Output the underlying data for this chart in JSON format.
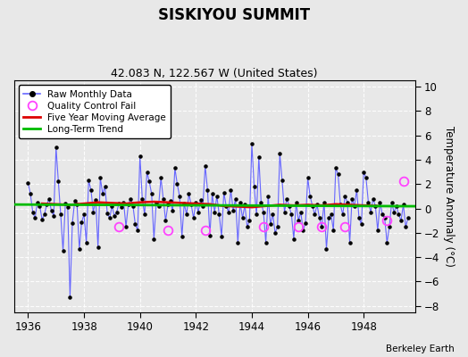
{
  "title": "SISKIYOU SUMMIT",
  "subtitle": "42.083 N, 122.567 W (United States)",
  "ylabel": "Temperature Anomaly (°C)",
  "credit": "Berkeley Earth",
  "xlim": [
    1935.5,
    1949.83
  ],
  "ylim": [
    -8.5,
    10.5
  ],
  "yticks": [
    -8,
    -6,
    -4,
    -2,
    0,
    2,
    4,
    6,
    8,
    10
  ],
  "xticks": [
    1936,
    1938,
    1940,
    1942,
    1944,
    1946,
    1948
  ],
  "bg_color": "#e8e8e8",
  "grid_color": "#c8c8c8",
  "raw_color": "#6666ff",
  "dot_color": "#000000",
  "ma_color": "#dd0000",
  "trend_color": "#00bb00",
  "qc_color": "#ff44ff",
  "raw_data_x": [
    1936.0,
    1936.083,
    1936.167,
    1936.25,
    1936.333,
    1936.417,
    1936.5,
    1936.583,
    1936.667,
    1936.75,
    1936.833,
    1936.917,
    1937.0,
    1937.083,
    1937.167,
    1937.25,
    1937.333,
    1937.417,
    1937.5,
    1937.583,
    1937.667,
    1937.75,
    1937.833,
    1937.917,
    1938.0,
    1938.083,
    1938.167,
    1938.25,
    1938.333,
    1938.417,
    1938.5,
    1938.583,
    1938.667,
    1938.75,
    1938.833,
    1938.917,
    1939.0,
    1939.083,
    1939.167,
    1939.25,
    1939.333,
    1939.417,
    1939.5,
    1939.583,
    1939.667,
    1939.75,
    1939.833,
    1939.917,
    1940.0,
    1940.083,
    1940.167,
    1940.25,
    1940.333,
    1940.417,
    1940.5,
    1940.583,
    1940.667,
    1940.75,
    1940.833,
    1940.917,
    1941.0,
    1941.083,
    1941.167,
    1941.25,
    1941.333,
    1941.417,
    1941.5,
    1941.583,
    1941.667,
    1941.75,
    1941.833,
    1941.917,
    1942.0,
    1942.083,
    1942.167,
    1942.25,
    1942.333,
    1942.417,
    1942.5,
    1942.583,
    1942.667,
    1942.75,
    1942.833,
    1942.917,
    1943.0,
    1943.083,
    1943.167,
    1943.25,
    1943.333,
    1943.417,
    1943.5,
    1943.583,
    1943.667,
    1943.75,
    1943.833,
    1943.917,
    1944.0,
    1944.083,
    1944.167,
    1944.25,
    1944.333,
    1944.417,
    1944.5,
    1944.583,
    1944.667,
    1944.75,
    1944.833,
    1944.917,
    1945.0,
    1945.083,
    1945.167,
    1945.25,
    1945.333,
    1945.417,
    1945.5,
    1945.583,
    1945.667,
    1945.75,
    1945.833,
    1945.917,
    1946.0,
    1946.083,
    1946.167,
    1946.25,
    1946.333,
    1946.417,
    1946.5,
    1946.583,
    1946.667,
    1946.75,
    1946.833,
    1946.917,
    1947.0,
    1947.083,
    1947.167,
    1947.25,
    1947.333,
    1947.417,
    1947.5,
    1947.583,
    1947.667,
    1947.75,
    1947.833,
    1947.917,
    1948.0,
    1948.083,
    1948.167,
    1948.25,
    1948.333,
    1948.417,
    1948.5,
    1948.583,
    1948.667,
    1948.75,
    1948.833,
    1948.917,
    1949.0,
    1949.083,
    1949.167,
    1949.25,
    1949.333,
    1949.417,
    1949.5,
    1949.583
  ],
  "raw_data_y": [
    2.1,
    1.2,
    -0.3,
    -0.8,
    0.5,
    0.2,
    -0.9,
    -0.5,
    0.3,
    0.8,
    -0.2,
    -0.6,
    5.0,
    2.2,
    -0.5,
    -3.5,
    0.4,
    0.1,
    -7.3,
    -1.2,
    0.6,
    0.3,
    -3.3,
    -1.1,
    -0.5,
    -2.8,
    2.3,
    1.5,
    -0.3,
    0.7,
    -3.2,
    2.5,
    1.2,
    1.8,
    -0.4,
    -0.8,
    0.2,
    -0.6,
    -0.3,
    0.4,
    0.1,
    0.5,
    -1.5,
    0.3,
    0.8,
    0.2,
    -1.3,
    -1.8,
    4.3,
    0.8,
    -0.5,
    3.0,
    2.2,
    1.2,
    -2.5,
    0.5,
    0.2,
    2.5,
    0.8,
    -1.0,
    0.3,
    0.6,
    -0.2,
    3.3,
    2.0,
    1.0,
    -2.3,
    0.4,
    -0.5,
    1.2,
    0.3,
    -0.8,
    0.5,
    -0.3,
    0.7,
    0.2,
    3.5,
    1.5,
    -2.2,
    1.2,
    -0.3,
    1.0,
    -0.5,
    -2.3,
    1.3,
    0.2,
    -0.3,
    1.5,
    -0.2,
    0.8,
    -2.8,
    0.5,
    -0.8,
    0.3,
    -1.5,
    -1.0,
    5.3,
    1.8,
    -0.5,
    4.2,
    0.5,
    -0.3,
    -2.8,
    1.0,
    -1.3,
    -0.5,
    -2.0,
    -1.5,
    4.5,
    2.3,
    -0.3,
    0.8,
    0.2,
    -0.5,
    -2.5,
    0.5,
    -1.0,
    -0.3,
    -1.8,
    -1.2,
    2.5,
    1.0,
    0.2,
    -0.5,
    0.3,
    -0.8,
    -1.5,
    0.5,
    -3.3,
    -0.8,
    -0.5,
    -1.8,
    3.3,
    2.8,
    0.3,
    -0.5,
    1.0,
    0.5,
    -2.8,
    0.8,
    0.2,
    1.5,
    -0.8,
    -1.3,
    3.0,
    2.5,
    0.5,
    -0.3,
    0.8,
    0.2,
    -1.8,
    0.5,
    -0.5,
    -0.8,
    -2.8,
    -1.5,
    0.5,
    -0.3,
    0.2,
    -0.5,
    -1.0,
    0.3,
    -1.5,
    -0.8
  ],
  "qc_fail_points": [
    [
      1939.25,
      -1.5
    ],
    [
      1941.0,
      -1.8
    ],
    [
      1942.333,
      -1.8
    ],
    [
      1944.417,
      -1.5
    ],
    [
      1945.667,
      -1.5
    ],
    [
      1946.5,
      -1.5
    ],
    [
      1947.333,
      -1.5
    ],
    [
      1948.833,
      -1.0
    ],
    [
      1949.417,
      2.2
    ]
  ],
  "moving_avg_x": [
    1936.5,
    1937.0,
    1937.5,
    1938.0,
    1938.5,
    1939.0,
    1939.5,
    1940.0,
    1940.5,
    1941.0,
    1941.5,
    1942.0,
    1942.5,
    1943.0,
    1943.5,
    1944.0,
    1944.5,
    1945.0,
    1945.5,
    1946.0,
    1946.5,
    1947.0,
    1947.5,
    1948.0,
    1948.5
  ],
  "moving_avg_y": [
    0.4,
    0.35,
    0.3,
    0.4,
    0.5,
    0.45,
    0.4,
    0.5,
    0.55,
    0.5,
    0.45,
    0.4,
    0.35,
    0.2,
    0.15,
    0.1,
    0.2,
    0.3,
    0.25,
    0.3,
    0.25,
    0.35,
    0.3,
    0.25,
    0.2
  ],
  "trend_x": [
    1935.5,
    1949.83
  ],
  "trend_y": [
    0.32,
    0.18
  ]
}
